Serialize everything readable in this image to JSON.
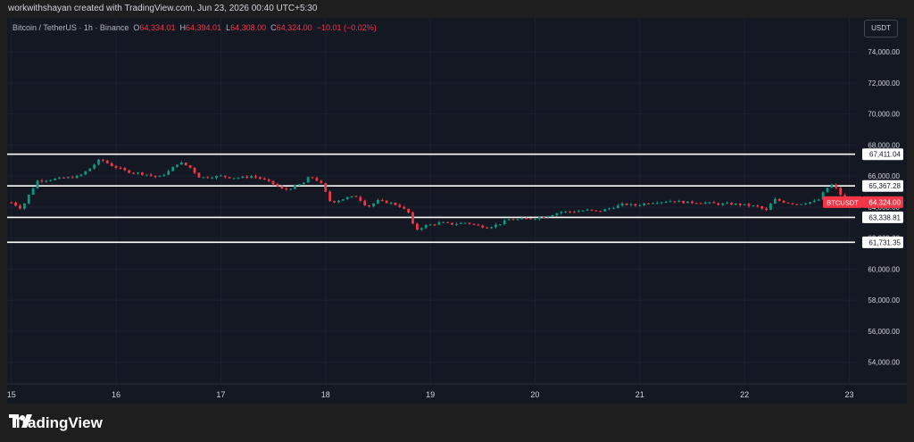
{
  "header": {
    "credit": "workwithshayan created with TradingView.com, Jun 23, 2026 00:40 UTC+5:30"
  },
  "legend": {
    "symbol": "Bitcoin / TetherUS · 1h · Binance",
    "open_label": "O",
    "open": "64,334.01",
    "high_label": "H",
    "high": "64,394.01",
    "low_label": "L",
    "low": "64,308.00",
    "close_label": "C",
    "close": "64,324.00",
    "change": "−10.01 (−0.02%)"
  },
  "currency_button": "USDT",
  "footer": {
    "brand": "TradingView"
  },
  "colors": {
    "up": "#089981",
    "down": "#f23645",
    "background": "#141823",
    "level_line": "#ffffff"
  },
  "chart_data": {
    "type": "candlestick",
    "x_ticks": [
      "15",
      "16",
      "17",
      "18",
      "19",
      "20",
      "21",
      "22",
      "23"
    ],
    "y_ticks": [
      "54,000.00",
      "56,000.00",
      "58,000.00",
      "60,000.00",
      "62,000.00",
      "64,000.00",
      "66,000.00",
      "68,000.00",
      "70,000.00",
      "72,000.00",
      "74,000.00"
    ],
    "ylim": [
      52600,
      76200
    ],
    "xlim": [
      14.96,
      23.55
    ],
    "horizontal_levels": [
      {
        "value": 67411.04,
        "label": "67,411.04"
      },
      {
        "value": 65367.28,
        "label": "65,367.28"
      },
      {
        "value": 63338.81,
        "label": "63,338.81"
      },
      {
        "value": 61731.35,
        "label": "61,731.35"
      }
    ],
    "last_price": {
      "symbol": "BTCUSDT",
      "value": 64324.0,
      "label": "64,324.00"
    },
    "close_path": [
      [
        15.0,
        64300
      ],
      [
        15.1,
        63900
      ],
      [
        15.15,
        64600
      ],
      [
        15.25,
        65700
      ],
      [
        15.4,
        65800
      ],
      [
        15.55,
        65900
      ],
      [
        15.65,
        66000
      ],
      [
        15.75,
        66500
      ],
      [
        15.85,
        67100
      ],
      [
        15.95,
        66700
      ],
      [
        16.1,
        66300
      ],
      [
        16.2,
        66200
      ],
      [
        16.3,
        66100
      ],
      [
        16.4,
        65900
      ],
      [
        16.5,
        66300
      ],
      [
        16.6,
        66900
      ],
      [
        16.7,
        66600
      ],
      [
        16.8,
        65900
      ],
      [
        17.0,
        66000
      ],
      [
        17.1,
        65900
      ],
      [
        17.2,
        65900
      ],
      [
        17.3,
        66000
      ],
      [
        17.4,
        65800
      ],
      [
        17.5,
        65500
      ],
      [
        17.6,
        65100
      ],
      [
        17.7,
        65300
      ],
      [
        17.8,
        65600
      ],
      [
        17.85,
        66000
      ],
      [
        17.95,
        65600
      ],
      [
        18.05,
        64300
      ],
      [
        18.2,
        64600
      ],
      [
        18.3,
        64700
      ],
      [
        18.4,
        64000
      ],
      [
        18.5,
        64400
      ],
      [
        18.6,
        64300
      ],
      [
        18.7,
        64100
      ],
      [
        18.8,
        63600
      ],
      [
        18.85,
        62500
      ],
      [
        18.95,
        62800
      ],
      [
        19.1,
        63000
      ],
      [
        19.2,
        62900
      ],
      [
        19.35,
        63000
      ],
      [
        19.45,
        62800
      ],
      [
        19.55,
        62700
      ],
      [
        19.65,
        62900
      ],
      [
        19.75,
        63200
      ],
      [
        19.85,
        63200
      ],
      [
        20.0,
        63300
      ],
      [
        20.15,
        63500
      ],
      [
        20.25,
        63700
      ],
      [
        20.35,
        63700
      ],
      [
        20.5,
        63800
      ],
      [
        20.6,
        63700
      ],
      [
        20.7,
        63900
      ],
      [
        20.85,
        64200
      ],
      [
        20.95,
        64100
      ],
      [
        21.1,
        64300
      ],
      [
        21.3,
        64400
      ],
      [
        21.45,
        64300
      ],
      [
        21.6,
        64300
      ],
      [
        21.75,
        64200
      ],
      [
        21.9,
        64200
      ],
      [
        22.05,
        64100
      ],
      [
        22.15,
        64000
      ],
      [
        22.2,
        63700
      ],
      [
        22.28,
        64500
      ],
      [
        22.4,
        64300
      ],
      [
        22.5,
        64200
      ],
      [
        22.6,
        64300
      ],
      [
        22.7,
        64400
      ],
      [
        22.78,
        65200
      ],
      [
        22.85,
        65500
      ],
      [
        22.9,
        64900
      ],
      [
        23.0,
        64324
      ]
    ]
  }
}
